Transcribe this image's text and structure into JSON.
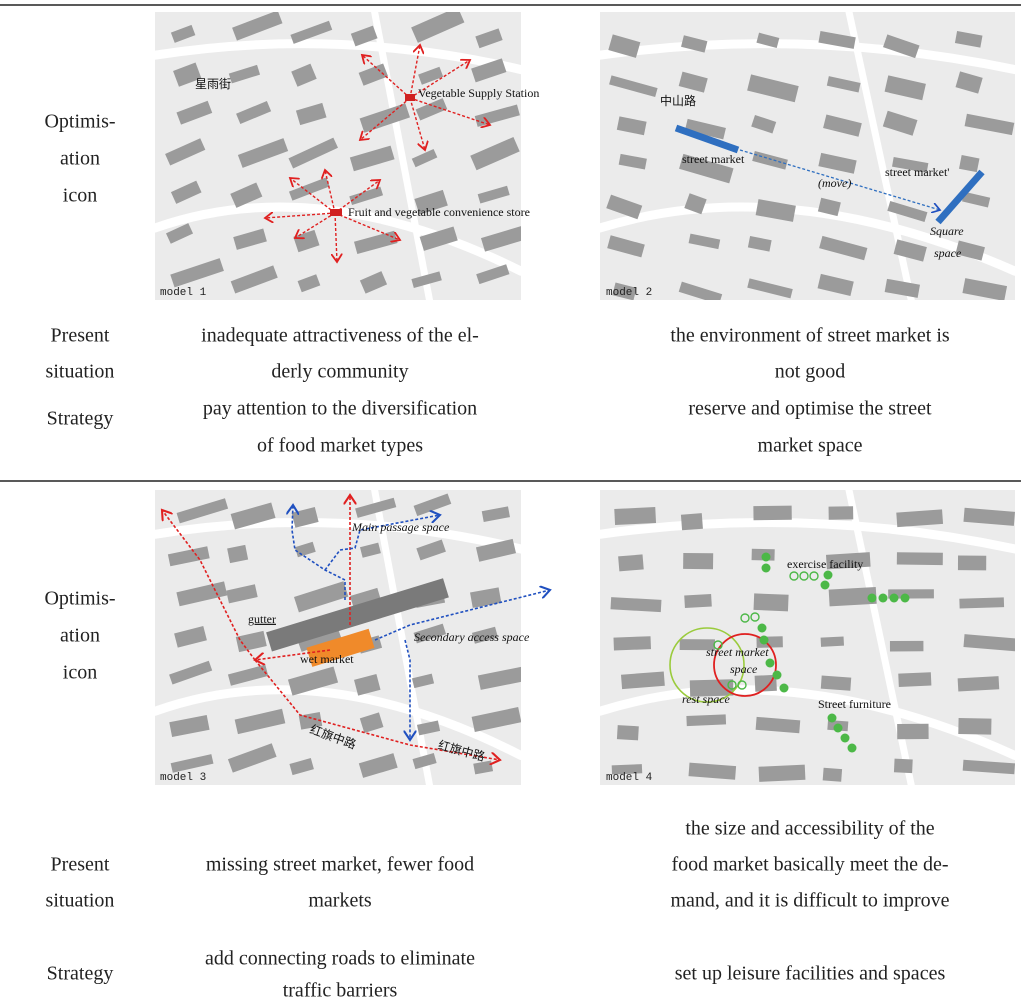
{
  "blocks": [
    {
      "icon_label": [
        "Optimis-",
        "ation",
        "icon"
      ],
      "present_label": [
        "Present",
        "situation"
      ],
      "strategy_label": "Strategy",
      "panels": [
        {
          "model": "model 1",
          "labels": [
            "星雨街",
            "Vegetable Supply Station",
            "Fruit and vegetable convenience store"
          ]
        },
        {
          "model": "model 2",
          "labels": [
            "中山路",
            "street market",
            "(move)",
            "street market'",
            "Square",
            "space"
          ]
        }
      ],
      "present": [
        [
          "inadequate attractiveness of the el-",
          "derly community"
        ],
        [
          "the environment of street market is",
          "not good"
        ]
      ],
      "strategy": [
        [
          "pay attention to the diversification",
          "of food market types"
        ],
        [
          "reserve and optimise the street",
          "market space"
        ]
      ]
    },
    {
      "icon_label": [
        "Optimis-",
        "ation",
        "icon"
      ],
      "present_label": [
        "Present",
        "situation"
      ],
      "strategy_label": "Strategy",
      "panels": [
        {
          "model": "model 3",
          "labels": [
            "Main passage space",
            "gutter",
            "wet market",
            "Secondary access space",
            "红旗中路",
            "红旗中路"
          ]
        },
        {
          "model": "model 4",
          "labels": [
            "exercise facility",
            "street market",
            "space",
            "rest space",
            "Street furniture"
          ]
        }
      ],
      "present": [
        [
          "missing street market, fewer food",
          "markets"
        ],
        [
          "the size and accessibility of the",
          "food market basically meet the de-",
          "mand, and it is difficult to improve"
        ]
      ],
      "strategy": [
        [
          "add connecting roads to eliminate",
          "traffic barriers"
        ],
        [
          "set up leisure facilities and spaces"
        ]
      ]
    }
  ]
}
